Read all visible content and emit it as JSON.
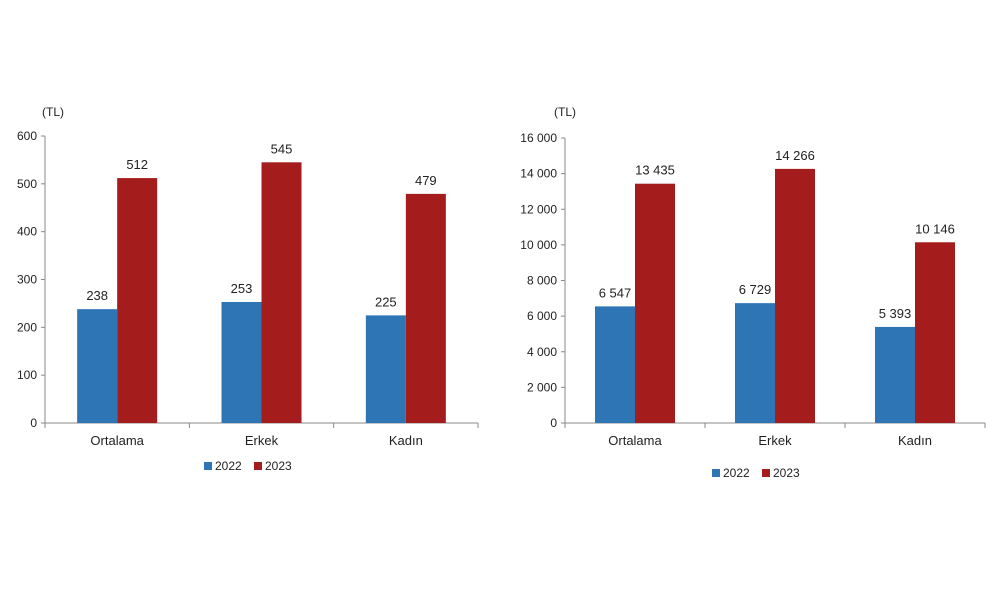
{
  "chart_data": [
    {
      "type": "bar",
      "unit_label": "(TL)",
      "categories": [
        "Ortalama",
        "Erkek",
        "Kadın"
      ],
      "series": [
        {
          "name": "2022",
          "color": "#2E75B6",
          "values": [
            238,
            253,
            225
          ],
          "labels": [
            "238",
            "253",
            "225"
          ]
        },
        {
          "name": "2023",
          "color": "#A51C1C",
          "values": [
            512,
            545,
            479
          ],
          "labels": [
            "512",
            "545",
            "479"
          ]
        }
      ],
      "ylim": [
        0,
        600
      ],
      "yticks": [
        0,
        100,
        200,
        300,
        400,
        500,
        600
      ],
      "ytick_labels": [
        "0",
        "100",
        "200",
        "300",
        "400",
        "500",
        "600"
      ],
      "grid": false,
      "legend": "bottom"
    },
    {
      "type": "bar",
      "unit_label": "(TL)",
      "categories": [
        "Ortalama",
        "Erkek",
        "Kadın"
      ],
      "series": [
        {
          "name": "2022",
          "color": "#2E75B6",
          "values": [
            6547,
            6729,
            5393
          ],
          "labels": [
            "6 547",
            "6 729",
            "5 393"
          ]
        },
        {
          "name": "2023",
          "color": "#A51C1C",
          "values": [
            13435,
            14266,
            10146
          ],
          "labels": [
            "13 435",
            "14 266",
            "10 146"
          ]
        }
      ],
      "ylim": [
        0,
        16000
      ],
      "yticks": [
        0,
        2000,
        4000,
        6000,
        8000,
        10000,
        12000,
        14000,
        16000
      ],
      "ytick_labels": [
        "0",
        "2 000",
        "4 000",
        "6 000",
        "8 000",
        "10 000",
        "12 000",
        "14 000",
        "16 000"
      ],
      "grid": false,
      "legend": "bottom"
    }
  ]
}
